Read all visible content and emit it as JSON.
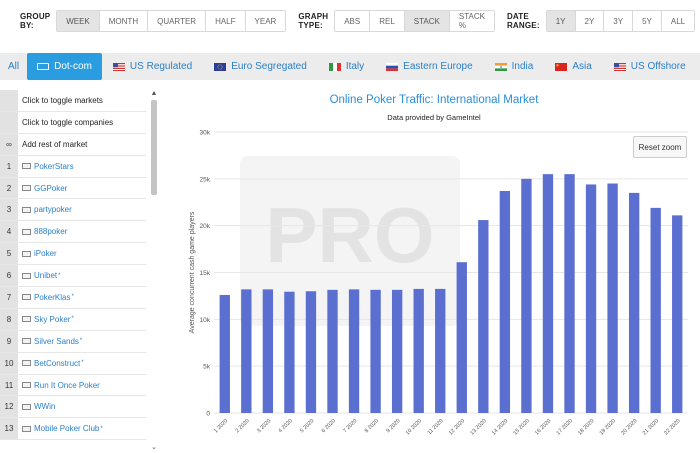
{
  "toolbar": {
    "group_by": {
      "label": "GROUP BY:",
      "options": [
        "WEEK",
        "MONTH",
        "QUARTER",
        "HALF",
        "YEAR"
      ],
      "selected": "WEEK"
    },
    "graph_type": {
      "label": "GRAPH TYPE:",
      "options": [
        "ABS",
        "REL",
        "STACK",
        "STACK %"
      ],
      "selected": "STACK"
    },
    "date_range": {
      "label": "DATE RANGE:",
      "options": [
        "1Y",
        "2Y",
        "3Y",
        "5Y",
        "ALL"
      ],
      "selected": "1Y"
    }
  },
  "tabs": [
    {
      "label": "All",
      "icon": "none"
    },
    {
      "label": "Dot-com",
      "icon": "dotcom-icon",
      "active": true
    },
    {
      "label": "US Regulated",
      "icon": "us-flag-icon"
    },
    {
      "label": "Euro Segregated",
      "icon": "eu-flag-icon"
    },
    {
      "label": "Italy",
      "icon": "italy-flag-icon"
    },
    {
      "label": "Eastern Europe",
      "icon": "russia-flag-icon"
    },
    {
      "label": "India",
      "icon": "india-flag-icon"
    },
    {
      "label": "Asia",
      "icon": "china-flag-icon"
    },
    {
      "label": "US Offshore",
      "icon": "us-flag-icon"
    }
  ],
  "sidebar": {
    "toggle_markets": "Click to toggle markets",
    "toggle_companies": "Click to toggle companies",
    "rest_symbol": "∞",
    "rest_label": "Add rest of market",
    "items": [
      {
        "num": "1",
        "name": "PokerStars",
        "mark": ""
      },
      {
        "num": "2",
        "name": "GGPoker",
        "mark": ""
      },
      {
        "num": "3",
        "name": "partypoker",
        "mark": ""
      },
      {
        "num": "4",
        "name": "888poker",
        "mark": ""
      },
      {
        "num": "5",
        "name": "iPoker",
        "mark": ""
      },
      {
        "num": "6",
        "name": "Unibet",
        "mark": "*"
      },
      {
        "num": "7",
        "name": "PokerKlas",
        "mark": "*"
      },
      {
        "num": "8",
        "name": "Sky Poker",
        "mark": "*"
      },
      {
        "num": "9",
        "name": "Silver Sands",
        "mark": "*"
      },
      {
        "num": "10",
        "name": "BetConstruct",
        "mark": "*"
      },
      {
        "num": "11",
        "name": "Run It Once Poker",
        "mark": ""
      },
      {
        "num": "12",
        "name": "WWin",
        "mark": ""
      },
      {
        "num": "13",
        "name": "Mobile Poker Club",
        "mark": "*"
      }
    ]
  },
  "chart": {
    "reset_label": "Reset zoom",
    "watermark": "PRO",
    "bar_color": "#5b6fd1"
  },
  "chart_data": {
    "type": "bar",
    "title": "Online Poker Traffic: International Market",
    "subtitle": "Data provided by GameIntel",
    "ylabel": "Average concurrent cash game players",
    "xlabel": "",
    "ylim": [
      0,
      30000
    ],
    "yticks": [
      "0",
      "5k",
      "10k",
      "15k",
      "20k",
      "25k",
      "30k"
    ],
    "categories": [
      "1 2020",
      "2 2020",
      "3 2020",
      "4 2020",
      "5 2020",
      "6 2020",
      "7 2020",
      "8 2020",
      "9 2020",
      "10 2020",
      "11 2020",
      "12 2020",
      "13 2020",
      "14 2020",
      "15 2020",
      "16 2020",
      "17 2020",
      "18 2020",
      "19 2020",
      "20 2020",
      "21 2020",
      "22 2020"
    ],
    "values": [
      12600,
      13200,
      13200,
      12950,
      13000,
      13150,
      13200,
      13150,
      13150,
      13250,
      13250,
      16100,
      20600,
      23700,
      25000,
      25500,
      25500,
      24400,
      24500,
      23500,
      21900,
      21100
    ],
    "grid": true,
    "legend": "none"
  }
}
